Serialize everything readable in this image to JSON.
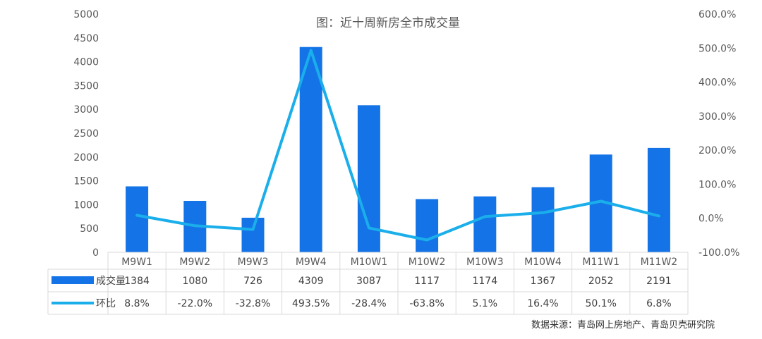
{
  "chart_data": {
    "type": "bar",
    "title": "图：近十周新房全市成交量",
    "categories": [
      "M9W1",
      "M9W2",
      "M9W3",
      "M9W4",
      "M10W1",
      "M10W2",
      "M10W3",
      "M10W4",
      "M11W1",
      "M11W2"
    ],
    "series": [
      {
        "name": "成交量",
        "type": "bar",
        "axis": "left",
        "values": [
          1384,
          1080,
          726,
          4309,
          3087,
          1117,
          1174,
          1367,
          2052,
          2191
        ],
        "labels": [
          "1384",
          "1080",
          "726",
          "4309",
          "3087",
          "1117",
          "1174",
          "1367",
          "2052",
          "2191"
        ],
        "color": "#1473E6"
      },
      {
        "name": "环比",
        "type": "line",
        "axis": "right",
        "values": [
          8.8,
          -22.0,
          -32.8,
          493.5,
          -28.4,
          -63.8,
          5.1,
          16.4,
          50.1,
          6.8
        ],
        "labels": [
          "8.8%",
          "-22.0%",
          "-32.8%",
          "493.5%",
          "-28.4%",
          "-63.8%",
          "5.1%",
          "16.4%",
          "50.1%",
          "6.8%"
        ],
        "color": "#1AAEEB"
      }
    ],
    "y_left": {
      "min": 0,
      "max": 5000,
      "step": 500,
      "ticks": [
        "0",
        "500",
        "1000",
        "1500",
        "2000",
        "2500",
        "3000",
        "3500",
        "4000",
        "4500",
        "5000"
      ]
    },
    "y_right": {
      "min": -100,
      "max": 600,
      "step": 100,
      "ticks": [
        "-100.0%",
        "0.0%",
        "100.0%",
        "200.0%",
        "300.0%",
        "400.0%",
        "500.0%",
        "600.0%"
      ]
    },
    "grid": false,
    "legend": "data-table-below",
    "source": "数据来源：青岛网上房地产、青岛贝壳研究院"
  }
}
